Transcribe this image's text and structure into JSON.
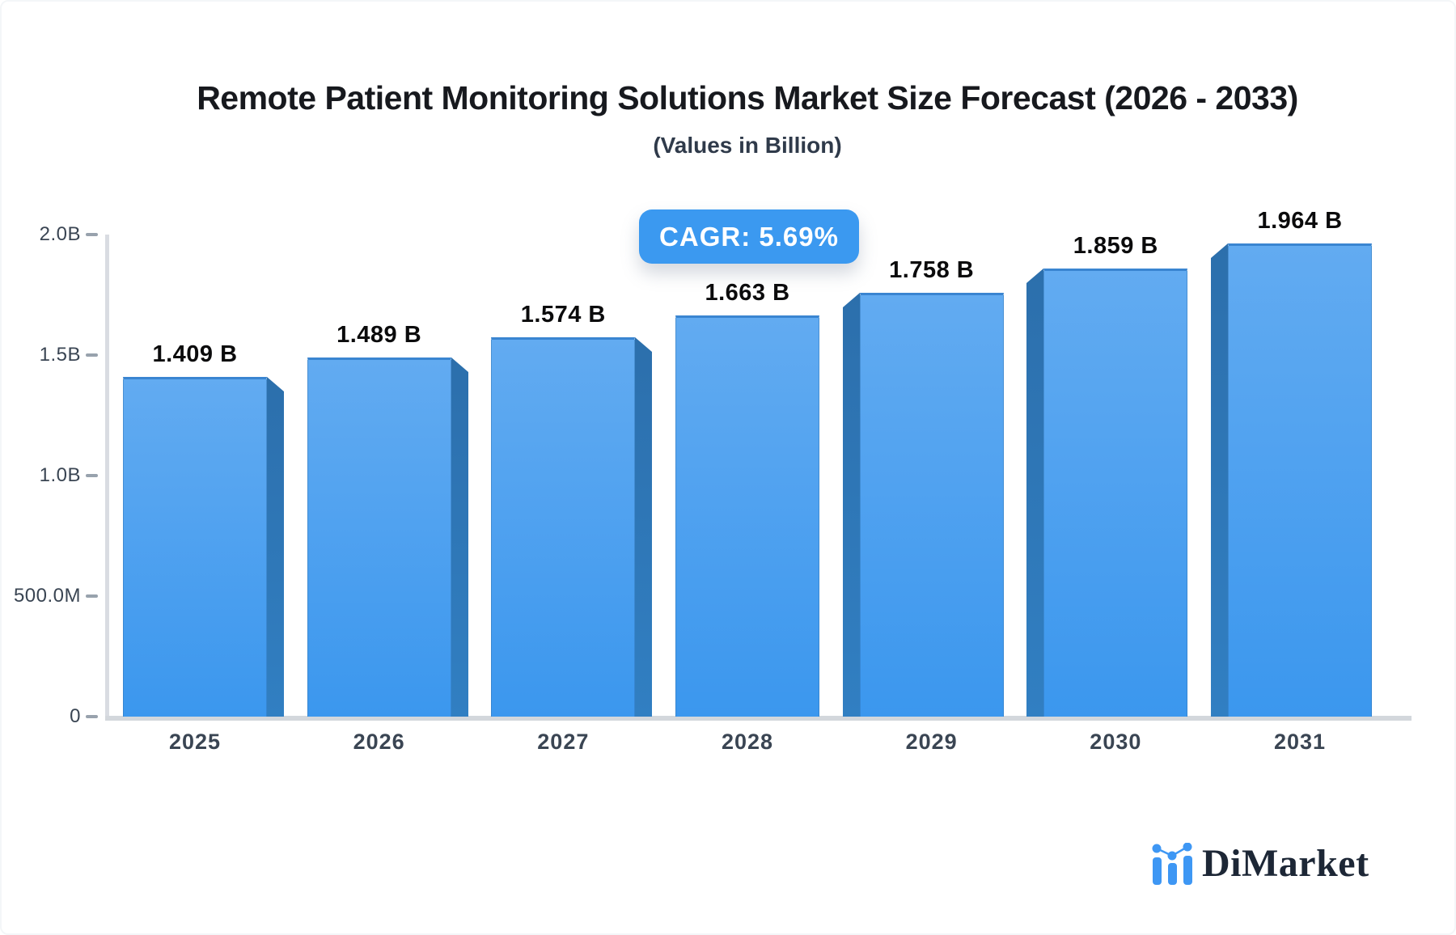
{
  "header": {
    "title": "Remote Patient Monitoring Solutions Market Size Forecast (2026 - 2033)",
    "subtitle": "(Values in Billion)",
    "cagr_badge": "CAGR: 5.69%"
  },
  "brand": {
    "name": "DiMarket",
    "icon": "bar-chart-logo-icon"
  },
  "colors": {
    "accent": "#3B99F0",
    "bar_face_top": "#62ABF1",
    "bar_face_bottom": "#3B97EE",
    "bar_top_edge": "#3A85D1",
    "bar_side": "#2D73B2",
    "axis_line": "#D9DCE2",
    "title_text": "#17191E",
    "axis_text": "#3A4553",
    "brand_navy": "#1D2736",
    "brand_blue": "#3E97F4"
  },
  "chart_data": {
    "type": "bar",
    "style": "3d-bars-blue",
    "title": "Remote Patient Monitoring Solutions Market Size Forecast (2026 - 2033)",
    "subtitle": "(Values in Billion)",
    "annotation": "CAGR: 5.69%",
    "categories": [
      "2025",
      "2026",
      "2027",
      "2028",
      "2029",
      "2030",
      "2031"
    ],
    "values": [
      1.409,
      1.489,
      1.574,
      1.663,
      1.758,
      1.859,
      1.964
    ],
    "value_labels": [
      "1.409 B",
      "1.489 B",
      "1.574 B",
      "1.663 B",
      "1.758 B",
      "1.859 B",
      "1.964 B"
    ],
    "unit": "Billion USD",
    "xlabel": "",
    "ylabel": "",
    "ylim": [
      0,
      2.0
    ],
    "y_ticks": [
      "2.0B",
      "1.5B",
      "1.0B",
      "500.0M",
      "0"
    ],
    "y_tick_values": [
      2.0,
      1.5,
      1.0,
      0.5,
      0
    ],
    "grid": false,
    "legend": false
  }
}
